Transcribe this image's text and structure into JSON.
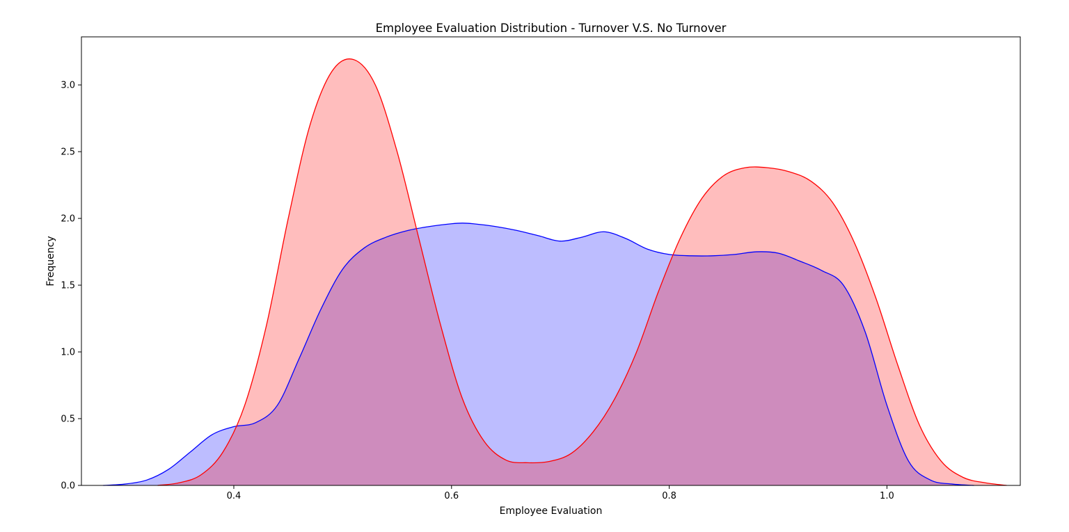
{
  "chart_data": {
    "type": "area",
    "title": "Employee Evaluation Distribution - Turnover V.S. No Turnover",
    "xlabel": "Employee Evaluation",
    "ylabel": "Frequency",
    "xlim": [
      0.26,
      1.1225
    ],
    "ylim": [
      0,
      3.36
    ],
    "xticks": [
      0.4,
      0.6,
      0.8,
      1.0
    ],
    "xtick_labels": [
      "0.4",
      "0.6",
      "0.8",
      "1.0"
    ],
    "yticks": [
      0.0,
      0.5,
      1.0,
      1.5,
      2.0,
      2.5,
      3.0
    ],
    "ytick_labels": [
      "0.0",
      "0.5",
      "1.0",
      "1.5",
      "2.0",
      "2.5",
      "3.0"
    ],
    "grid": false,
    "legend": "none",
    "series": [
      {
        "color": "#0000ff",
        "fill": "rgba(0,0,255,0.26)",
        "x": [
          0.28,
          0.3,
          0.32,
          0.34,
          0.36,
          0.38,
          0.4,
          0.42,
          0.44,
          0.46,
          0.48,
          0.5,
          0.52,
          0.54,
          0.56,
          0.58,
          0.6,
          0.61,
          0.62,
          0.64,
          0.66,
          0.68,
          0.7,
          0.72,
          0.74,
          0.76,
          0.78,
          0.8,
          0.82,
          0.84,
          0.86,
          0.88,
          0.9,
          0.92,
          0.94,
          0.96,
          0.98,
          1.0,
          1.02,
          1.04,
          1.06,
          1.08
        ],
        "y": [
          0.0,
          0.01,
          0.04,
          0.12,
          0.25,
          0.38,
          0.44,
          0.47,
          0.6,
          0.95,
          1.32,
          1.62,
          1.78,
          1.86,
          1.91,
          1.94,
          1.96,
          1.965,
          1.96,
          1.94,
          1.91,
          1.87,
          1.83,
          1.86,
          1.9,
          1.85,
          1.77,
          1.73,
          1.72,
          1.72,
          1.73,
          1.75,
          1.74,
          1.68,
          1.61,
          1.5,
          1.15,
          0.6,
          0.18,
          0.04,
          0.01,
          0.0
        ]
      },
      {
        "color": "#ff0000",
        "fill": "rgba(255,0,0,0.26)",
        "x": [
          0.33,
          0.35,
          0.37,
          0.39,
          0.41,
          0.43,
          0.45,
          0.47,
          0.49,
          0.51,
          0.53,
          0.55,
          0.57,
          0.59,
          0.61,
          0.63,
          0.65,
          0.67,
          0.69,
          0.71,
          0.73,
          0.75,
          0.77,
          0.79,
          0.81,
          0.83,
          0.85,
          0.87,
          0.89,
          0.91,
          0.93,
          0.95,
          0.97,
          0.99,
          1.01,
          1.03,
          1.05,
          1.07,
          1.09,
          1.11
        ],
        "y": [
          0.0,
          0.02,
          0.08,
          0.25,
          0.6,
          1.2,
          2.0,
          2.7,
          3.1,
          3.19,
          3.0,
          2.5,
          1.85,
          1.2,
          0.65,
          0.33,
          0.19,
          0.17,
          0.18,
          0.24,
          0.4,
          0.65,
          1.0,
          1.45,
          1.85,
          2.15,
          2.32,
          2.38,
          2.38,
          2.35,
          2.28,
          2.12,
          1.82,
          1.4,
          0.9,
          0.45,
          0.18,
          0.06,
          0.02,
          0.0
        ]
      }
    ]
  }
}
